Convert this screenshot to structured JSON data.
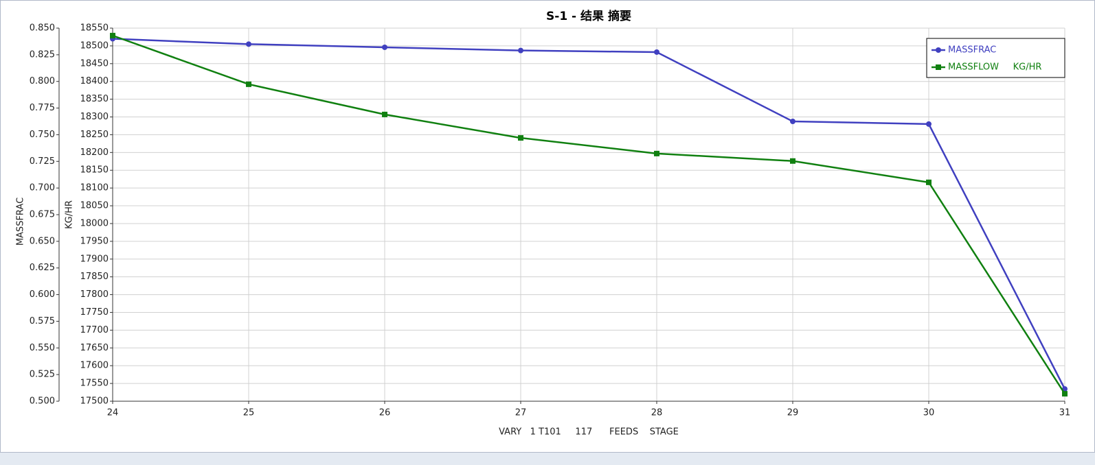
{
  "chart_data": {
    "type": "line",
    "title": "S-1 - 结果 摘要",
    "x_label": "VARY   1 T101     117      FEEDS    STAGE",
    "y_label": "MASSFRAC",
    "y2_label": "KG/HR",
    "x": [
      24,
      25,
      26,
      27,
      28,
      29,
      30,
      31
    ],
    "xlim": [
      24,
      31
    ],
    "xticks": [
      24,
      25,
      26,
      27,
      28,
      29,
      30,
      31
    ],
    "ylim": [
      0.5,
      0.85
    ],
    "yticks": [
      {
        "value": 0.5,
        "label": "0.500"
      },
      {
        "value": 0.525,
        "label": "0.525"
      },
      {
        "value": 0.55,
        "label": "0.550"
      },
      {
        "value": 0.575,
        "label": "0.575"
      },
      {
        "value": 0.6,
        "label": "0.600"
      },
      {
        "value": 0.625,
        "label": "0.625"
      },
      {
        "value": 0.65,
        "label": "0.650"
      },
      {
        "value": 0.675,
        "label": "0.675"
      },
      {
        "value": 0.7,
        "label": "0.700"
      },
      {
        "value": 0.725,
        "label": "0.725"
      },
      {
        "value": 0.75,
        "label": "0.750"
      },
      {
        "value": 0.775,
        "label": "0.775"
      },
      {
        "value": 0.8,
        "label": "0.800"
      },
      {
        "value": 0.825,
        "label": "0.825"
      },
      {
        "value": 0.85,
        "label": "0.850"
      }
    ],
    "y2lim": [
      17500,
      18550
    ],
    "y2ticks": [
      17500,
      17550,
      17600,
      17650,
      17700,
      17750,
      17800,
      17850,
      17900,
      17950,
      18000,
      18050,
      18100,
      18150,
      18200,
      18250,
      18300,
      18350,
      18400,
      18450,
      18500,
      18550
    ],
    "grid": true,
    "legend": "upper right",
    "series": [
      {
        "name": "MASSFRAC",
        "color": "#4040c0",
        "marker": "circle",
        "values": [
          0.84,
          0.835,
          0.832,
          0.829,
          0.8275,
          0.7625,
          0.76,
          0.5115
        ]
      },
      {
        "name": "MASSFLOW     KG/HR",
        "color": "#108010",
        "marker": "square",
        "axis": "y2",
        "values": [
          18529,
          18392,
          18307,
          18241,
          18197,
          18176,
          18116,
          17521
        ]
      }
    ]
  }
}
